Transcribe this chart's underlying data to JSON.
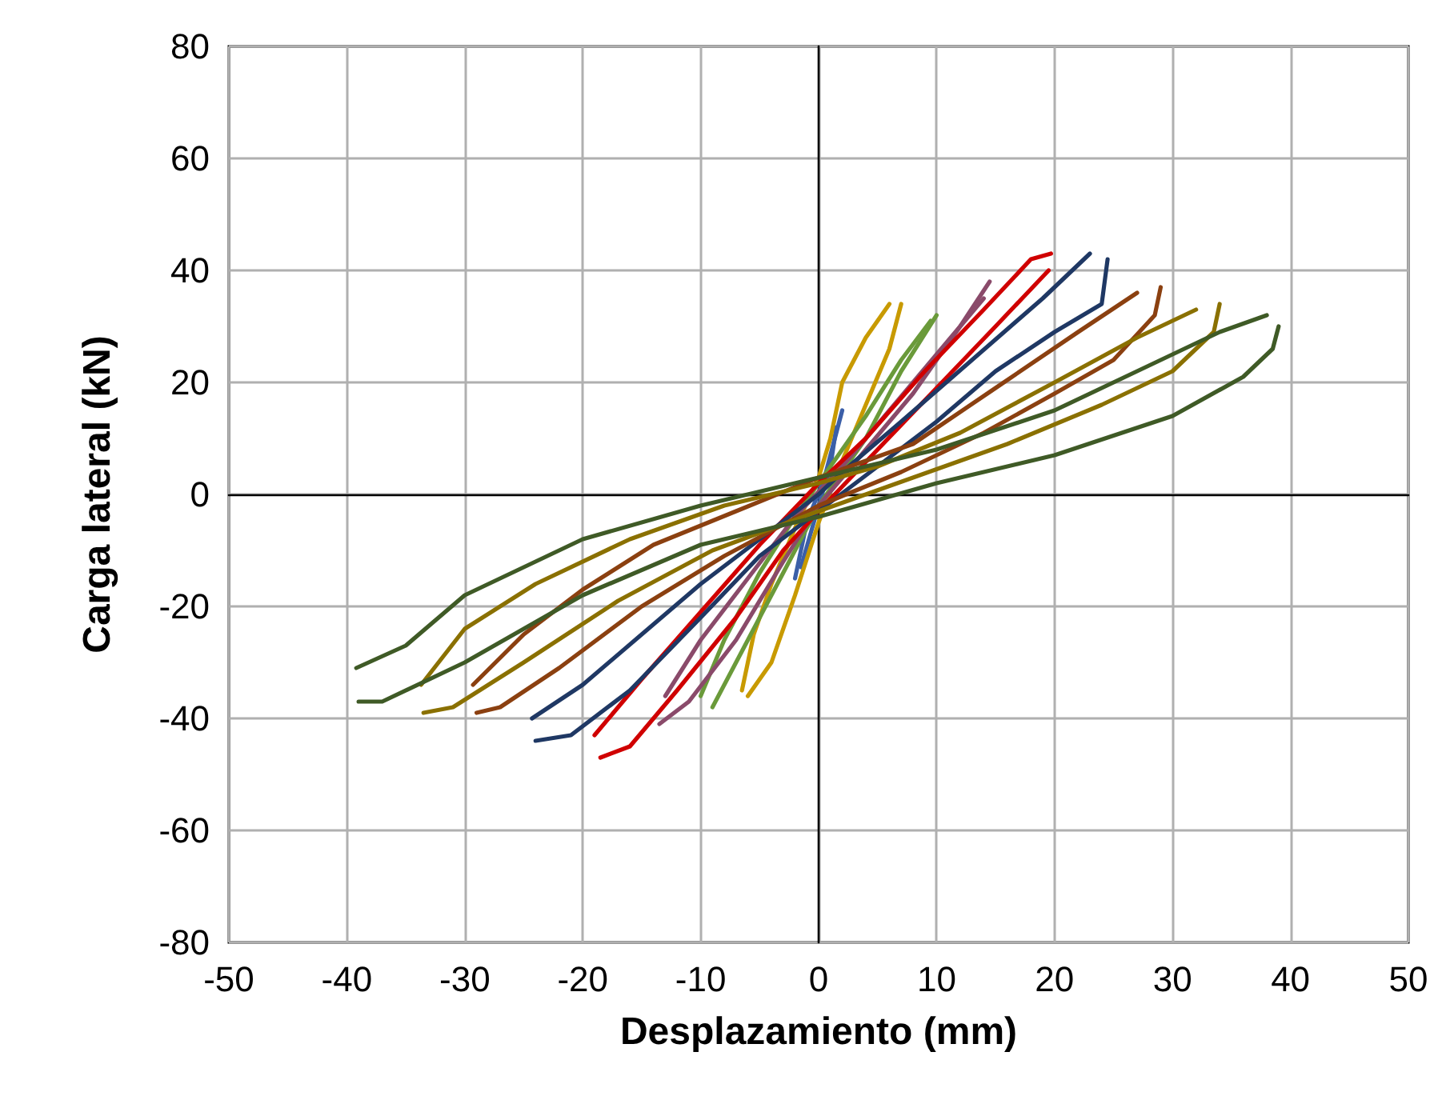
{
  "chart_data": {
    "type": "line",
    "xlabel": "Desplazamiento (mm)",
    "ylabel": "Carga lateral (kN)",
    "xlim": [
      -50,
      50
    ],
    "xticks": [
      -50,
      -40,
      -30,
      -20,
      -10,
      0,
      10,
      20,
      30,
      40,
      50
    ],
    "ylim": [
      -80,
      80
    ],
    "yticks": [
      -80,
      -60,
      -40,
      -20,
      0,
      20,
      40,
      60,
      80
    ],
    "grid": true,
    "marker": "none",
    "line_style": "solid",
    "series": [
      {
        "color": "#3b5fa8",
        "x": [
          -2,
          -1,
          0.5,
          2
        ],
        "values": [
          -15,
          -5,
          3,
          15
        ]
      },
      {
        "color": "#3b5fa8",
        "x": [
          -1.5,
          0,
          1,
          1.5
        ],
        "values": [
          -13,
          -2,
          5,
          12
        ]
      },
      {
        "color": "#c89a00",
        "x": [
          -6,
          -4,
          -2,
          0,
          2,
          4,
          6,
          7
        ],
        "values": [
          -36,
          -30,
          -18,
          -5,
          6,
          16,
          26,
          34
        ]
      },
      {
        "color": "#c89a00",
        "x": [
          -6.5,
          -5.5,
          -4,
          -2,
          0,
          1,
          2,
          4,
          6
        ],
        "values": [
          -35,
          -25,
          -16,
          -6,
          3,
          10,
          20,
          28,
          34
        ]
      },
      {
        "color": "#6a9a3a",
        "x": [
          -9,
          -6,
          -3,
          0,
          4,
          7,
          10
        ],
        "values": [
          -38,
          -26,
          -14,
          -2,
          10,
          22,
          32
        ]
      },
      {
        "color": "#6a9a3a",
        "x": [
          -10,
          -8,
          -5,
          -2,
          1,
          4,
          7,
          9.5
        ],
        "values": [
          -36,
          -26,
          -14,
          -4,
          5,
          14,
          24,
          31
        ]
      },
      {
        "color": "#8a4a6a",
        "x": [
          -13.5,
          -11,
          -7,
          -3,
          0,
          4,
          8,
          12,
          14.5
        ],
        "values": [
          -41,
          -37,
          -26,
          -12,
          -2,
          8,
          18,
          30,
          38
        ]
      },
      {
        "color": "#8a4a6a",
        "x": [
          -13,
          -10,
          -6,
          -2,
          2,
          6,
          10,
          14
        ],
        "values": [
          -36,
          -26,
          -15,
          -4,
          5,
          15,
          25,
          35
        ]
      },
      {
        "color": "#d00000",
        "x": [
          -18.5,
          -16,
          -12,
          -7,
          -3,
          0,
          5,
          10,
          15,
          19.5
        ],
        "values": [
          -47,
          -45,
          -35,
          -22,
          -10,
          -3,
          8,
          19,
          30,
          40
        ]
      },
      {
        "color": "#d00000",
        "x": [
          -19,
          -15,
          -10,
          -5,
          0,
          4,
          9,
          14,
          18,
          19.7
        ],
        "values": [
          -43,
          -33,
          -21,
          -9,
          2,
          10,
          22,
          33,
          42,
          43
        ]
      },
      {
        "color": "#1f3864",
        "x": [
          -24,
          -21,
          -16,
          -10,
          -5,
          0,
          5,
          10,
          15,
          20,
          24,
          24.5
        ],
        "values": [
          -44,
          -43,
          -35,
          -22,
          -11,
          -3,
          5,
          13,
          22,
          29,
          34,
          42
        ]
      },
      {
        "color": "#1f3864",
        "x": [
          -24.3,
          -20,
          -15,
          -10,
          -5,
          0,
          2,
          7,
          13,
          19,
          23
        ],
        "values": [
          -40,
          -34,
          -25,
          -16,
          -8,
          0,
          4,
          13,
          24,
          35,
          43
        ]
      },
      {
        "color": "#8b4010",
        "x": [
          -29,
          -27,
          -22,
          -15,
          -8,
          0,
          7,
          14,
          20,
          25,
          28.5,
          29
        ],
        "values": [
          -39,
          -38,
          -31,
          -20,
          -11,
          -2,
          4,
          11,
          18,
          24,
          32,
          37
        ]
      },
      {
        "color": "#8b4010",
        "x": [
          -29.3,
          -25,
          -20,
          -14,
          -7,
          0,
          8,
          15,
          22,
          27
        ],
        "values": [
          -34,
          -25,
          -17,
          -9,
          -3,
          3,
          9,
          19,
          29,
          36
        ]
      },
      {
        "color": "#8a7000",
        "x": [
          -33.5,
          -31,
          -25,
          -17,
          -9,
          0,
          8,
          16,
          24,
          30,
          33.5,
          34
        ],
        "values": [
          -39,
          -38,
          -30,
          -19,
          -10,
          -3,
          3,
          9,
          16,
          22,
          29,
          34
        ]
      },
      {
        "color": "#8a7000",
        "x": [
          -33.7,
          -30,
          -24,
          -16,
          -8,
          0,
          5,
          12,
          20,
          27,
          32
        ],
        "values": [
          -34,
          -24,
          -16,
          -8,
          -2,
          2,
          5,
          11,
          20,
          28,
          33
        ]
      },
      {
        "color": "#3f5a26",
        "x": [
          -39,
          -37,
          -30,
          -20,
          -10,
          0,
          10,
          20,
          30,
          36,
          38.5,
          39
        ],
        "values": [
          -37,
          -37,
          -30,
          -18,
          -9,
          -4,
          2,
          7,
          14,
          21,
          26,
          30
        ]
      },
      {
        "color": "#3f5a26",
        "x": [
          -39.2,
          -35,
          -30,
          -20,
          -10,
          0,
          10,
          20,
          28,
          34,
          38
        ],
        "values": [
          -31,
          -27,
          -18,
          -8,
          -2,
          3,
          8,
          15,
          23,
          29,
          32
        ]
      }
    ]
  }
}
